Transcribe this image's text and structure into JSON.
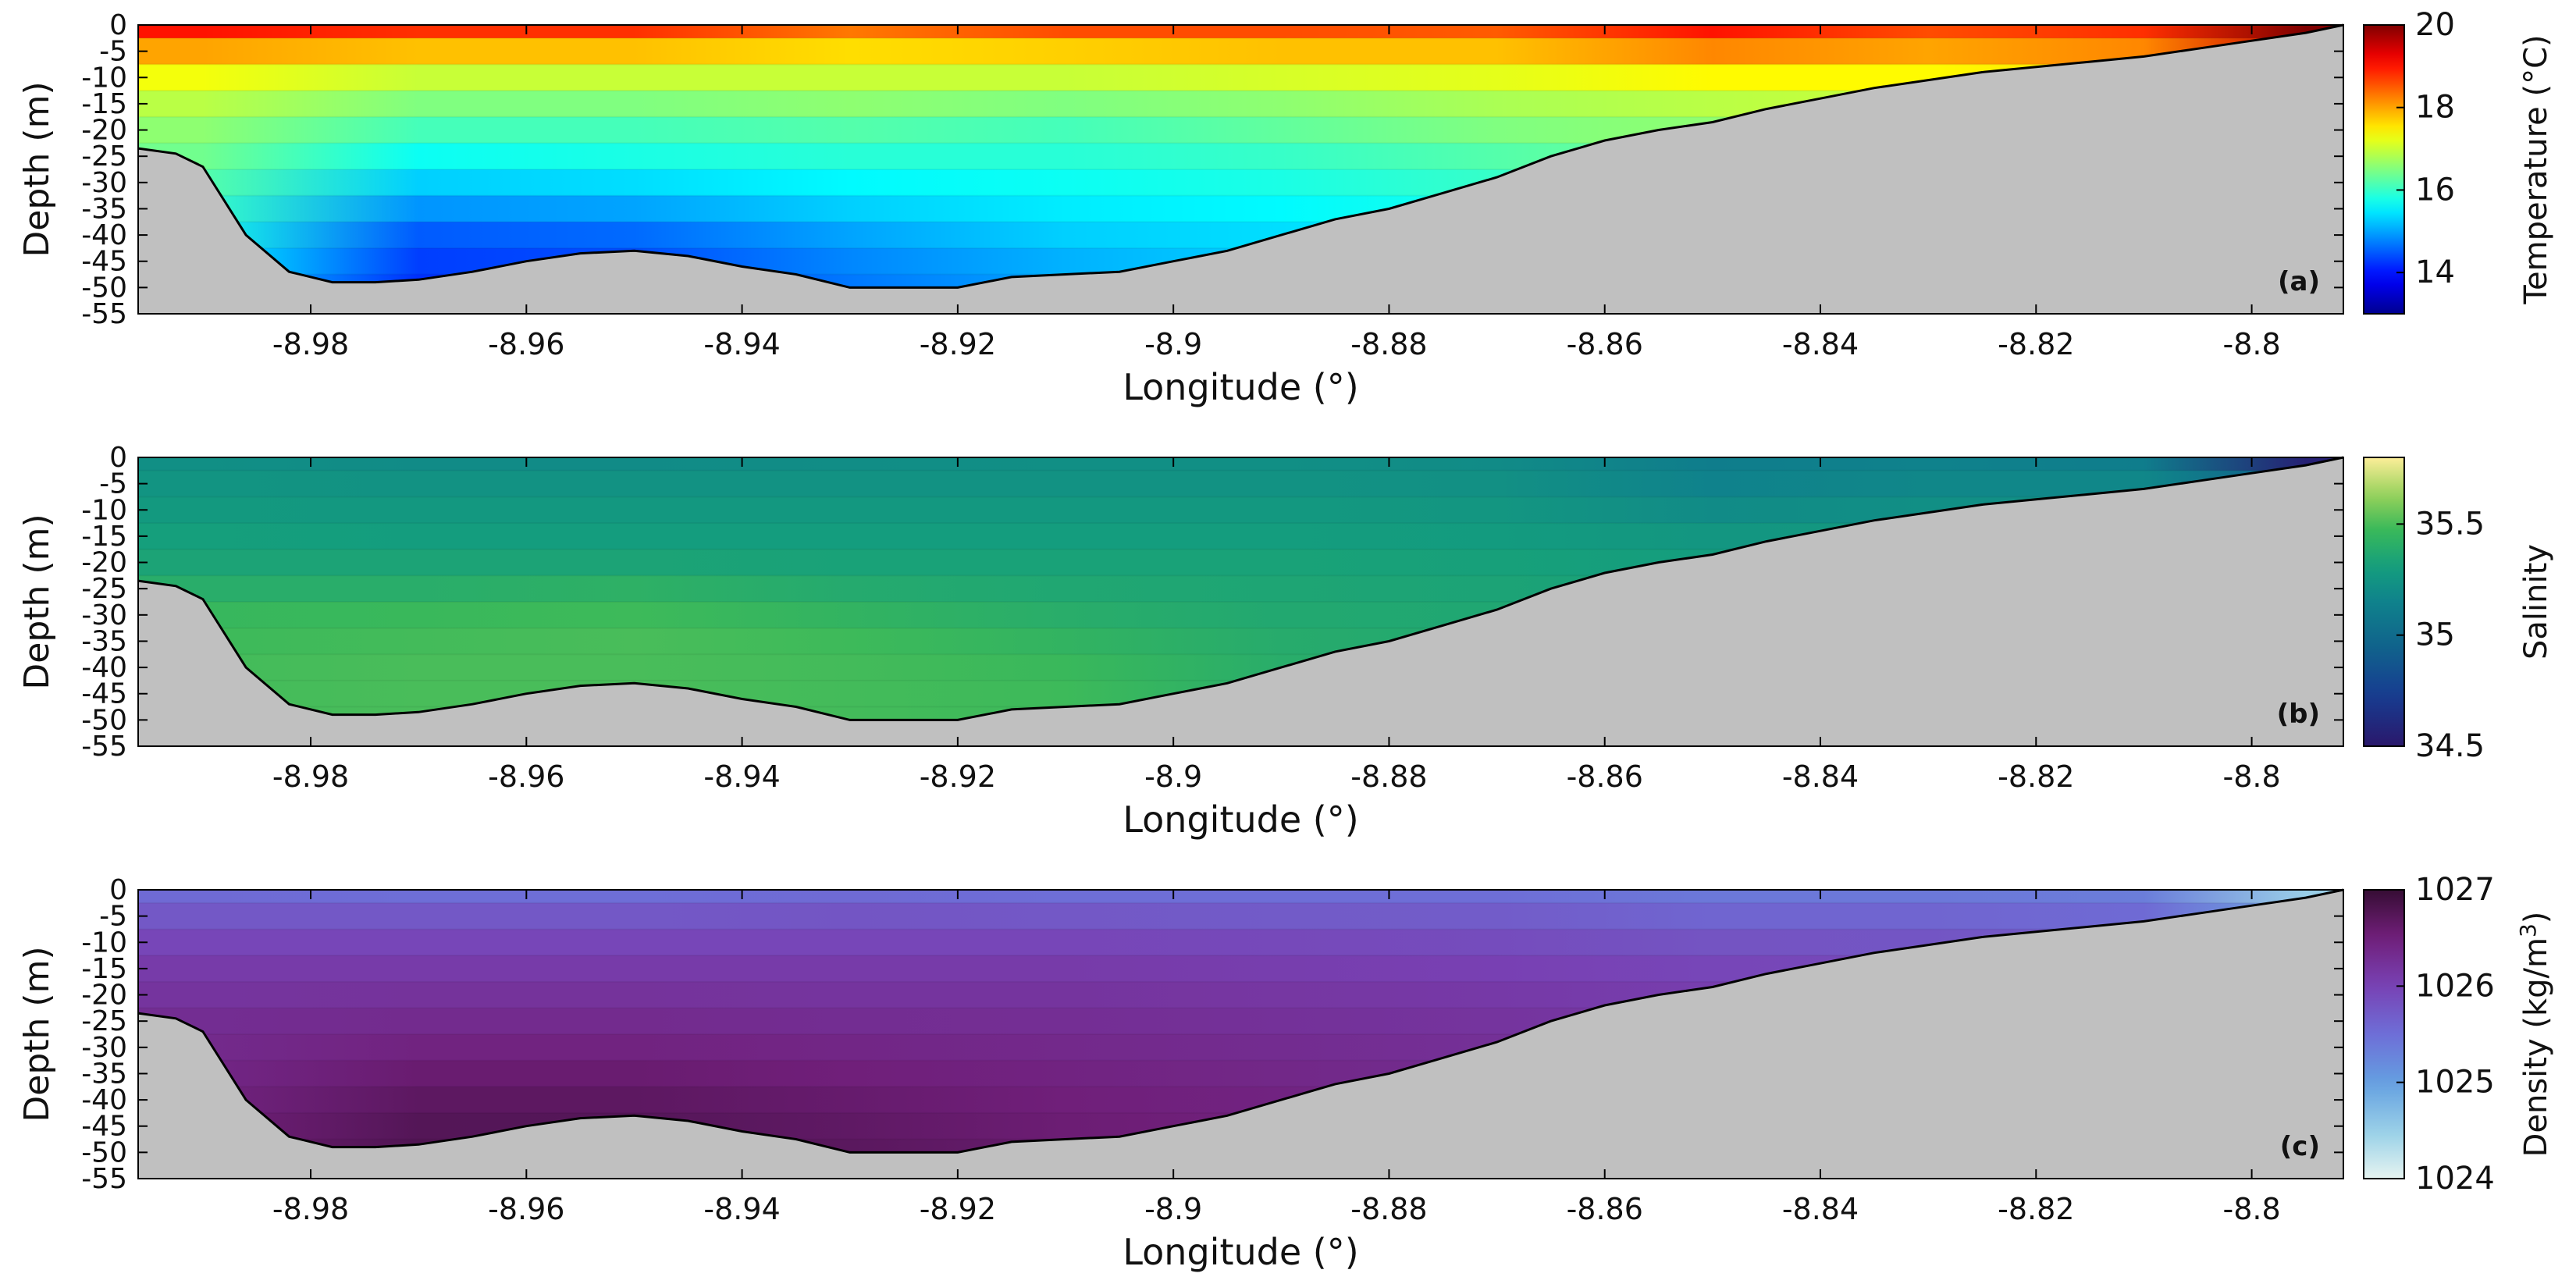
{
  "chart_data": [
    {
      "type": "heatmap",
      "panel_label": "(a)",
      "title": "",
      "xlabel": "Longitude (°)",
      "ylabel": "Depth (m)",
      "xlim": [
        -8.996,
        -8.7915
      ],
      "ylim": [
        -55,
        0
      ],
      "xticks": [
        -8.98,
        -8.96,
        -8.94,
        -8.92,
        -8.9,
        -8.88,
        -8.86,
        -8.84,
        -8.82,
        -8.8
      ],
      "xtick_labels": [
        "-8.98",
        "-8.96",
        "-8.94",
        "-8.92",
        "-8.9",
        "-8.88",
        "-8.86",
        "-8.84",
        "-8.82",
        "-8.8"
      ],
      "yticks": [
        0,
        -5,
        -10,
        -15,
        -20,
        -25,
        -30,
        -35,
        -40,
        -45,
        -50,
        -55
      ],
      "ytick_labels": [
        "0",
        "-5",
        "-10",
        "-15",
        "-20",
        "-25",
        "-30",
        "-35",
        "-40",
        "-45",
        "-50",
        "-55"
      ],
      "colorbar": {
        "label": "Temperature (°C)",
        "min": 13,
        "max": 20,
        "ticks": [
          14,
          16,
          18,
          20
        ],
        "tick_labels": [
          "14",
          "16",
          "18",
          "20"
        ],
        "colormap": "jet"
      },
      "variable": "temperature",
      "profile_depths": [
        0,
        -5,
        -10,
        -15,
        -20,
        -25,
        -30,
        -35,
        -40,
        -45,
        -50
      ],
      "profiles": [
        {
          "lon": -8.99,
          "values": [
            19.0,
            18.0,
            17.3,
            16.9,
            16.6,
            16.4,
            16.2,
            16.0,
            15.8,
            15.6,
            15.4
          ]
        },
        {
          "lon": -8.97,
          "values": [
            18.8,
            17.8,
            17.0,
            16.5,
            16.1,
            15.7,
            15.3,
            14.9,
            14.5,
            14.3,
            14.2
          ]
        },
        {
          "lon": -8.95,
          "values": [
            18.8,
            17.8,
            17.0,
            16.5,
            16.1,
            15.8,
            15.4,
            15.0,
            14.6,
            14.4,
            14.3
          ]
        },
        {
          "lon": -8.93,
          "values": [
            18.3,
            17.6,
            17.0,
            16.6,
            16.2,
            15.9,
            15.6,
            15.3,
            15.0,
            14.8,
            14.7
          ]
        },
        {
          "lon": -8.91,
          "values": [
            18.6,
            17.7,
            17.0,
            16.5,
            16.1,
            15.9,
            15.7,
            15.5,
            15.3,
            15.1,
            15.0
          ]
        },
        {
          "lon": -8.89,
          "values": [
            18.6,
            17.8,
            17.1,
            16.6,
            16.3,
            16.0,
            15.8,
            15.6,
            15.4,
            15.3,
            15.2
          ]
        },
        {
          "lon": -8.87,
          "values": [
            18.5,
            17.8,
            17.2,
            16.8,
            16.5,
            16.2,
            16.0,
            15.8,
            15.6,
            15.5,
            15.4
          ]
        },
        {
          "lon": -8.85,
          "values": [
            19.0,
            18.2,
            17.4,
            16.9,
            16.6,
            16.4,
            16.2,
            16.0,
            15.8,
            15.6,
            15.5
          ]
        },
        {
          "lon": -8.83,
          "values": [
            18.6,
            18.0,
            17.4,
            17.0,
            16.8,
            16.6,
            16.4,
            16.2,
            16.0,
            15.8,
            15.7
          ]
        },
        {
          "lon": -8.81,
          "values": [
            18.8,
            18.2,
            17.6,
            17.2,
            17.0,
            16.8,
            16.6,
            16.4,
            16.2,
            16.0,
            15.9
          ]
        },
        {
          "lon": -8.795,
          "values": [
            20.0,
            19.5,
            19.0,
            18.5,
            18.0,
            17.6,
            17.2,
            16.8,
            16.4,
            16.2,
            16.0
          ]
        }
      ],
      "seafloor": {
        "lon": [
          -8.996,
          -8.9925,
          -8.99,
          -8.986,
          -8.982,
          -8.978,
          -8.974,
          -8.97,
          -8.965,
          -8.96,
          -8.955,
          -8.95,
          -8.945,
          -8.94,
          -8.935,
          -8.93,
          -8.925,
          -8.92,
          -8.915,
          -8.91,
          -8.905,
          -8.9,
          -8.895,
          -8.89,
          -8.885,
          -8.88,
          -8.875,
          -8.87,
          -8.865,
          -8.86,
          -8.855,
          -8.85,
          -8.845,
          -8.84,
          -8.835,
          -8.83,
          -8.825,
          -8.82,
          -8.815,
          -8.81,
          -8.805,
          -8.8,
          -8.795,
          -8.7915
        ],
        "depth": [
          -23.5,
          -24.5,
          -27,
          -40,
          -47,
          -49,
          -49,
          -48.5,
          -47,
          -45,
          -43.5,
          -43,
          -44,
          -46,
          -47.5,
          -50,
          -50,
          -50,
          -48,
          -47.5,
          -47,
          -45,
          -43,
          -40,
          -37,
          -35,
          -32,
          -29,
          -25,
          -22,
          -20,
          -18.5,
          -16,
          -14,
          -12,
          -10.5,
          -9,
          -8,
          -7,
          -6,
          -4.5,
          -3,
          -1.5,
          0
        ]
      }
    },
    {
      "type": "heatmap",
      "panel_label": "(b)",
      "title": "",
      "xlabel": "Longitude (°)",
      "ylabel": "Depth (m)",
      "xlim": [
        -8.996,
        -8.7915
      ],
      "ylim": [
        -55,
        0
      ],
      "xticks": [
        -8.98,
        -8.96,
        -8.94,
        -8.92,
        -8.9,
        -8.88,
        -8.86,
        -8.84,
        -8.82,
        -8.8
      ],
      "xtick_labels": [
        "-8.98",
        "-8.96",
        "-8.94",
        "-8.92",
        "-8.9",
        "-8.88",
        "-8.86",
        "-8.84",
        "-8.82",
        "-8.8"
      ],
      "yticks": [
        0,
        -5,
        -10,
        -15,
        -20,
        -25,
        -30,
        -35,
        -40,
        -45,
        -50,
        -55
      ],
      "ytick_labels": [
        "0",
        "-5",
        "-10",
        "-15",
        "-20",
        "-25",
        "-30",
        "-35",
        "-40",
        "-45",
        "-50",
        "-55"
      ],
      "colorbar": {
        "label": "Salinity",
        "min": 34.5,
        "max": 35.8,
        "ticks": [
          34.5,
          35,
          35.5
        ],
        "tick_labels": [
          "34.5",
          "35",
          "35.5"
        ],
        "colormap": "haline"
      },
      "variable": "salinity",
      "profile_depths": [
        0,
        -5,
        -10,
        -15,
        -20,
        -25,
        -30,
        -35,
        -40,
        -45,
        -50
      ],
      "profiles": [
        {
          "lon": -8.99,
          "values": [
            35.22,
            35.25,
            35.28,
            35.31,
            35.34,
            35.4,
            35.46,
            35.48,
            35.49,
            35.49,
            35.49
          ]
        },
        {
          "lon": -8.97,
          "values": [
            35.2,
            35.24,
            35.27,
            35.3,
            35.34,
            35.4,
            35.47,
            35.49,
            35.5,
            35.5,
            35.5
          ]
        },
        {
          "lon": -8.95,
          "values": [
            35.2,
            35.24,
            35.27,
            35.3,
            35.34,
            35.42,
            35.48,
            35.5,
            35.5,
            35.5,
            35.5
          ]
        },
        {
          "lon": -8.93,
          "values": [
            35.21,
            35.24,
            35.27,
            35.3,
            35.33,
            35.38,
            35.44,
            35.48,
            35.49,
            35.49,
            35.49
          ]
        },
        {
          "lon": -8.91,
          "values": [
            35.22,
            35.24,
            35.27,
            35.3,
            35.33,
            35.36,
            35.4,
            35.44,
            35.47,
            35.48,
            35.48
          ]
        },
        {
          "lon": -8.89,
          "values": [
            35.22,
            35.24,
            35.27,
            35.3,
            35.33,
            35.35,
            35.37,
            35.39,
            35.4,
            35.4,
            35.4
          ]
        },
        {
          "lon": -8.87,
          "values": [
            35.2,
            35.23,
            35.26,
            35.29,
            35.32,
            35.34,
            35.36,
            35.37,
            35.38,
            35.38,
            35.38
          ]
        },
        {
          "lon": -8.85,
          "values": [
            35.12,
            35.15,
            35.2,
            35.26,
            35.3,
            35.32,
            35.34,
            35.35,
            35.35,
            35.35,
            35.35
          ]
        },
        {
          "lon": -8.83,
          "values": [
            35.15,
            35.18,
            35.22,
            35.27,
            35.3,
            35.32,
            35.33,
            35.34,
            35.34,
            35.34,
            35.34
          ]
        },
        {
          "lon": -8.81,
          "values": [
            35.12,
            35.18,
            35.22,
            35.26,
            35.29,
            35.31,
            35.32,
            35.33,
            35.33,
            35.33,
            35.33
          ]
        },
        {
          "lon": -8.795,
          "values": [
            34.55,
            34.9,
            35.1,
            35.2,
            35.25,
            35.28,
            35.3,
            35.3,
            35.3,
            35.3,
            35.3
          ]
        }
      ],
      "seafloor": {
        "lon": [
          -8.996,
          -8.9925,
          -8.99,
          -8.986,
          -8.982,
          -8.978,
          -8.974,
          -8.97,
          -8.965,
          -8.96,
          -8.955,
          -8.95,
          -8.945,
          -8.94,
          -8.935,
          -8.93,
          -8.925,
          -8.92,
          -8.915,
          -8.91,
          -8.905,
          -8.9,
          -8.895,
          -8.89,
          -8.885,
          -8.88,
          -8.875,
          -8.87,
          -8.865,
          -8.86,
          -8.855,
          -8.85,
          -8.845,
          -8.84,
          -8.835,
          -8.83,
          -8.825,
          -8.82,
          -8.815,
          -8.81,
          -8.805,
          -8.8,
          -8.795,
          -8.7915
        ],
        "depth": [
          -23.5,
          -24.5,
          -27,
          -40,
          -47,
          -49,
          -49,
          -48.5,
          -47,
          -45,
          -43.5,
          -43,
          -44,
          -46,
          -47.5,
          -50,
          -50,
          -50,
          -48,
          -47.5,
          -47,
          -45,
          -43,
          -40,
          -37,
          -35,
          -32,
          -29,
          -25,
          -22,
          -20,
          -18.5,
          -16,
          -14,
          -12,
          -10.5,
          -9,
          -8,
          -7,
          -6,
          -4.5,
          -3,
          -1.5,
          0
        ]
      }
    },
    {
      "type": "heatmap",
      "panel_label": "(c)",
      "title": "",
      "xlabel": "Longitude (°)",
      "ylabel": "Depth (m)",
      "xlim": [
        -8.996,
        -8.7915
      ],
      "ylim": [
        -55,
        0
      ],
      "xticks": [
        -8.98,
        -8.96,
        -8.94,
        -8.92,
        -8.9,
        -8.88,
        -8.86,
        -8.84,
        -8.82,
        -8.8
      ],
      "xtick_labels": [
        "-8.98",
        "-8.96",
        "-8.94",
        "-8.92",
        "-8.9",
        "-8.88",
        "-8.86",
        "-8.84",
        "-8.82",
        "-8.8"
      ],
      "yticks": [
        0,
        -5,
        -10,
        -15,
        -20,
        -25,
        -30,
        -35,
        -40,
        -45,
        -50,
        -55
      ],
      "ytick_labels": [
        "0",
        "-5",
        "-10",
        "-15",
        "-20",
        "-25",
        "-30",
        "-35",
        "-40",
        "-45",
        "-50",
        "-55"
      ],
      "colorbar": {
        "label": "Density (kg/m",
        "label_sup": "3",
        "label_end": ")",
        "min": 1024,
        "max": 1027,
        "ticks": [
          1024,
          1025,
          1026,
          1027
        ],
        "tick_labels": [
          "1024",
          "1025",
          "1026",
          "1027"
        ],
        "colormap": "dense"
      },
      "variable": "density",
      "profile_depths": [
        0,
        -5,
        -10,
        -15,
        -20,
        -25,
        -30,
        -35,
        -40,
        -45,
        -50
      ],
      "profiles": [
        {
          "lon": -8.99,
          "values": [
            1025.55,
            1025.75,
            1025.95,
            1026.1,
            1026.2,
            1026.3,
            1026.35,
            1026.4,
            1026.45,
            1026.5,
            1026.55
          ]
        },
        {
          "lon": -8.97,
          "values": [
            1025.5,
            1025.75,
            1025.95,
            1026.1,
            1026.22,
            1026.33,
            1026.45,
            1026.58,
            1026.68,
            1026.75,
            1026.78
          ]
        },
        {
          "lon": -8.95,
          "values": [
            1025.5,
            1025.75,
            1025.95,
            1026.1,
            1026.22,
            1026.33,
            1026.45,
            1026.58,
            1026.68,
            1026.74,
            1026.76
          ]
        },
        {
          "lon": -8.93,
          "values": [
            1025.55,
            1025.78,
            1025.95,
            1026.1,
            1026.2,
            1026.3,
            1026.4,
            1026.5,
            1026.6,
            1026.66,
            1026.7
          ]
        },
        {
          "lon": -8.91,
          "values": [
            1025.5,
            1025.75,
            1025.95,
            1026.1,
            1026.2,
            1026.28,
            1026.36,
            1026.44,
            1026.5,
            1026.55,
            1026.6
          ]
        },
        {
          "lon": -8.89,
          "values": [
            1025.5,
            1025.72,
            1025.92,
            1026.06,
            1026.16,
            1026.24,
            1026.32,
            1026.38,
            1026.44,
            1026.48,
            1026.5
          ]
        },
        {
          "lon": -8.87,
          "values": [
            1025.5,
            1025.7,
            1025.88,
            1026.02,
            1026.12,
            1026.2,
            1026.26,
            1026.32,
            1026.36,
            1026.4,
            1026.42
          ]
        },
        {
          "lon": -8.85,
          "values": [
            1025.4,
            1025.6,
            1025.8,
            1025.95,
            1026.06,
            1026.14,
            1026.2,
            1026.25,
            1026.3,
            1026.33,
            1026.35
          ]
        },
        {
          "lon": -8.83,
          "values": [
            1025.4,
            1025.6,
            1025.78,
            1025.92,
            1026.02,
            1026.1,
            1026.16,
            1026.2,
            1026.24,
            1026.26,
            1026.28
          ]
        },
        {
          "lon": -8.81,
          "values": [
            1025.35,
            1025.55,
            1025.72,
            1025.86,
            1025.96,
            1026.04,
            1026.1,
            1026.14,
            1026.18,
            1026.2,
            1026.22
          ]
        },
        {
          "lon": -8.795,
          "values": [
            1024.5,
            1024.9,
            1025.3,
            1025.6,
            1025.8,
            1025.95,
            1026.05,
            1026.1,
            1026.15,
            1026.18,
            1026.2
          ]
        }
      ],
      "seafloor": {
        "lon": [
          -8.996,
          -8.9925,
          -8.99,
          -8.986,
          -8.982,
          -8.978,
          -8.974,
          -8.97,
          -8.965,
          -8.96,
          -8.955,
          -8.95,
          -8.945,
          -8.94,
          -8.935,
          -8.93,
          -8.925,
          -8.92,
          -8.915,
          -8.91,
          -8.905,
          -8.9,
          -8.895,
          -8.89,
          -8.885,
          -8.88,
          -8.875,
          -8.87,
          -8.865,
          -8.86,
          -8.855,
          -8.85,
          -8.845,
          -8.84,
          -8.835,
          -8.83,
          -8.825,
          -8.82,
          -8.815,
          -8.81,
          -8.805,
          -8.8,
          -8.795,
          -8.7915
        ],
        "depth": [
          -23.5,
          -24.5,
          -27,
          -40,
          -47,
          -49,
          -49,
          -48.5,
          -47,
          -45,
          -43.5,
          -43,
          -44,
          -46,
          -47.5,
          -50,
          -50,
          -50,
          -48,
          -47.5,
          -47,
          -45,
          -43,
          -40,
          -37,
          -35,
          -32,
          -29,
          -25,
          -22,
          -20,
          -18.5,
          -16,
          -14,
          -12,
          -10.5,
          -9,
          -8,
          -7,
          -6,
          -4.5,
          -3,
          -1.5,
          0
        ]
      }
    }
  ]
}
